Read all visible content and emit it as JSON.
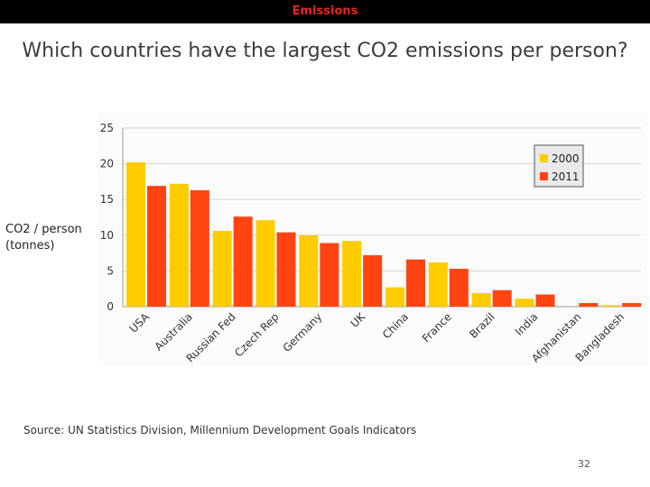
{
  "header": {
    "section": "Emissions"
  },
  "title": "Which countries have the largest CO2 emissions per person?",
  "ylabel_lines": [
    "CO2 / person",
    "(tonnes)"
  ],
  "source": "Source: UN Statistics Division, Millennium Development Goals Indicators",
  "page_number": "32",
  "colors": {
    "series_2000": "#ffcc00",
    "series_2011": "#ff4411",
    "grid": "#d6d6d6",
    "header_text": "#e8261c"
  },
  "chart_data": {
    "type": "bar",
    "title": "",
    "xlabel": "",
    "ylabel": "CO2 / person (tonnes)",
    "ylim": [
      0,
      25
    ],
    "yticks": [
      0,
      5,
      10,
      15,
      20,
      25
    ],
    "grid": true,
    "legend_position": "top-right",
    "categories": [
      "USA",
      "Australia",
      "Russian Fed",
      "Czech Rep",
      "Germany",
      "UK",
      "China",
      "France",
      "Brazil",
      "India",
      "Afghanistan",
      "Bangladesh"
    ],
    "series": [
      {
        "name": "2000",
        "values": [
          20.2,
          17.2,
          10.6,
          12.1,
          10.0,
          9.2,
          2.7,
          6.2,
          1.9,
          1.1,
          0.0,
          0.2
        ]
      },
      {
        "name": "2011",
        "values": [
          16.9,
          16.3,
          12.6,
          10.4,
          8.9,
          7.2,
          6.6,
          5.3,
          2.3,
          1.7,
          0.5,
          0.5
        ]
      }
    ]
  }
}
